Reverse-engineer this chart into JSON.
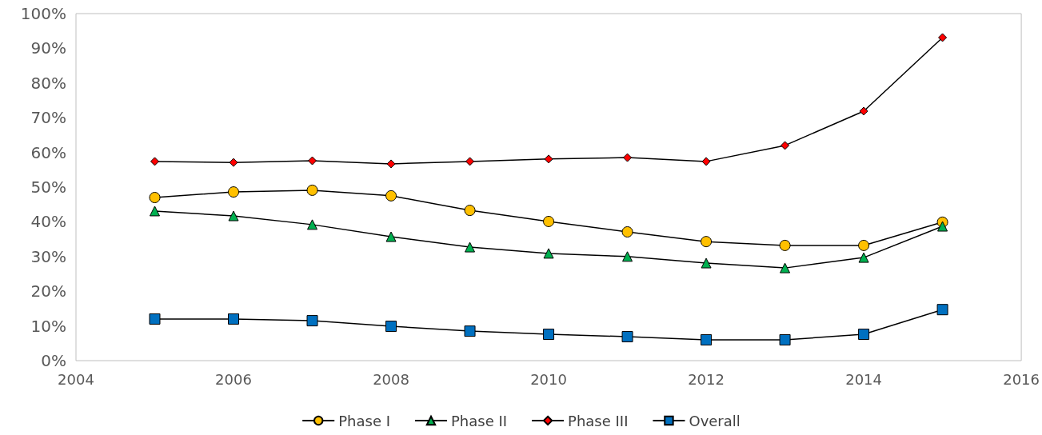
{
  "chart_data": {
    "type": "line",
    "x": [
      2005,
      2006,
      2007,
      2008,
      2009,
      2010,
      2011,
      2012,
      2013,
      2014,
      2015
    ],
    "series": [
      {
        "name": "Phase I",
        "color": "#ffc000",
        "marker": "circle",
        "values": [
          47.0,
          48.6,
          49.1,
          47.5,
          43.3,
          40.1,
          37.1,
          34.3,
          33.2,
          33.2,
          39.9
        ]
      },
      {
        "name": "Phase II",
        "color": "#00b050",
        "marker": "triangle",
        "values": [
          43.1,
          41.7,
          39.2,
          35.7,
          32.7,
          30.9,
          30.0,
          28.1,
          26.7,
          29.7,
          38.7
        ]
      },
      {
        "name": "Phase III",
        "color": "#ff0000",
        "marker": "diamond",
        "values": [
          57.4,
          57.1,
          57.6,
          56.7,
          57.4,
          58.1,
          58.5,
          57.4,
          62.0,
          71.9,
          93.1
        ]
      },
      {
        "name": "Overall",
        "color": "#0070c0",
        "marker": "square",
        "values": [
          12.0,
          12.0,
          11.5,
          9.9,
          8.5,
          7.6,
          6.9,
          6.0,
          6.0,
          7.6,
          14.7
        ]
      }
    ],
    "xlim": [
      2004,
      2016
    ],
    "xticks": [
      2004,
      2006,
      2008,
      2010,
      2012,
      2014,
      2016
    ],
    "ylim": [
      0,
      100
    ],
    "yticks": [
      {
        "value": 0,
        "label": "0%"
      },
      {
        "value": 10,
        "label": "10%"
      },
      {
        "value": 20,
        "label": "20%"
      },
      {
        "value": 30,
        "label": "30%"
      },
      {
        "value": 40,
        "label": "40%"
      },
      {
        "value": 50,
        "label": "50%"
      },
      {
        "value": 60,
        "label": "60%"
      },
      {
        "value": 70,
        "label": "70%"
      },
      {
        "value": 80,
        "label": "80%"
      },
      {
        "value": 90,
        "label": "90%"
      },
      {
        "value": 100,
        "label": "100%"
      }
    ],
    "grid": false,
    "legend": "bottom",
    "line_style": "solid"
  }
}
